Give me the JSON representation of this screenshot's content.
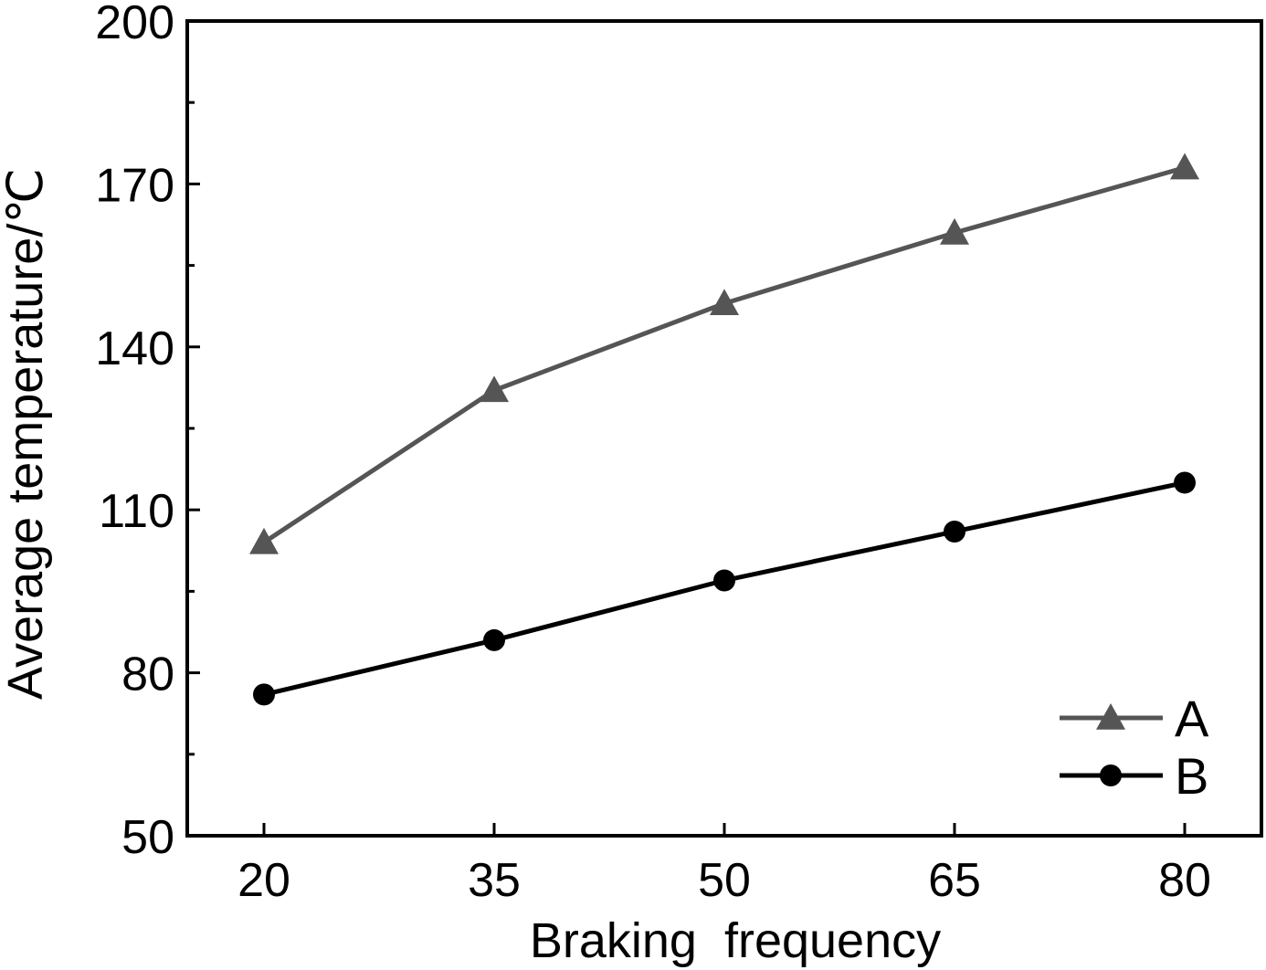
{
  "chart_data": {
    "type": "line",
    "title": "",
    "xlabel": "Braking  frequency",
    "ylabel": "Average temperature/℃",
    "x": [
      20,
      35,
      50,
      65,
      80
    ],
    "xticks": [
      "20",
      "35",
      "50",
      "65",
      "80"
    ],
    "xlim": [
      15,
      85
    ],
    "ylim": [
      50,
      200
    ],
    "yticks": [
      "50",
      "80",
      "110",
      "140",
      "170",
      "200"
    ],
    "grid": false,
    "legend_position": "bottom-right",
    "series": [
      {
        "name": "A",
        "marker": "triangle",
        "color": "#555555",
        "values": [
          104,
          132,
          148,
          161,
          173
        ]
      },
      {
        "name": "B",
        "marker": "circle",
        "color": "#000000",
        "values": [
          76,
          86,
          97,
          106,
          115
        ]
      }
    ]
  }
}
